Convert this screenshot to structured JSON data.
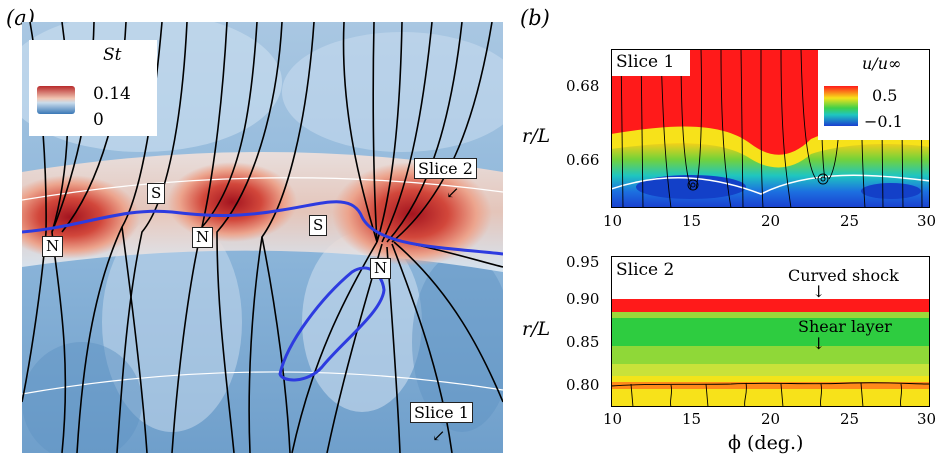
{
  "panel_a": {
    "label": "(a)",
    "legend": {
      "title": "St",
      "max": "0.14",
      "min": "0"
    },
    "points": {
      "n1": "N",
      "s1": "S",
      "n2": "N",
      "s2": "S",
      "n3": "N"
    },
    "slice_tags": {
      "slice2": "Slice 2",
      "slice1": "Slice 1"
    },
    "colors": {
      "base": "#6c9ec8",
      "hot": "#b0202c",
      "separation_line": "#2d3be0",
      "streamline": "#000000"
    }
  },
  "panel_b": {
    "label": "(b)",
    "ylabel": "r/L",
    "xlabel": "ϕ (deg.)",
    "slice1": {
      "title": "Slice 1",
      "yticks": [
        "0.68",
        "0.66"
      ],
      "xticks": [
        "10",
        "15",
        "20",
        "25",
        "30"
      ],
      "colorbar": {
        "label": "u/u∞",
        "max": "0.5",
        "min": "−0.1"
      }
    },
    "slice2": {
      "title": "Slice 2",
      "yticks": [
        "0.95",
        "0.90",
        "0.85",
        "0.80"
      ],
      "xticks": [
        "10",
        "15",
        "20",
        "25",
        "30"
      ],
      "annotations": {
        "shock": "Curved shock",
        "shear": "Shear layer"
      }
    }
  }
}
